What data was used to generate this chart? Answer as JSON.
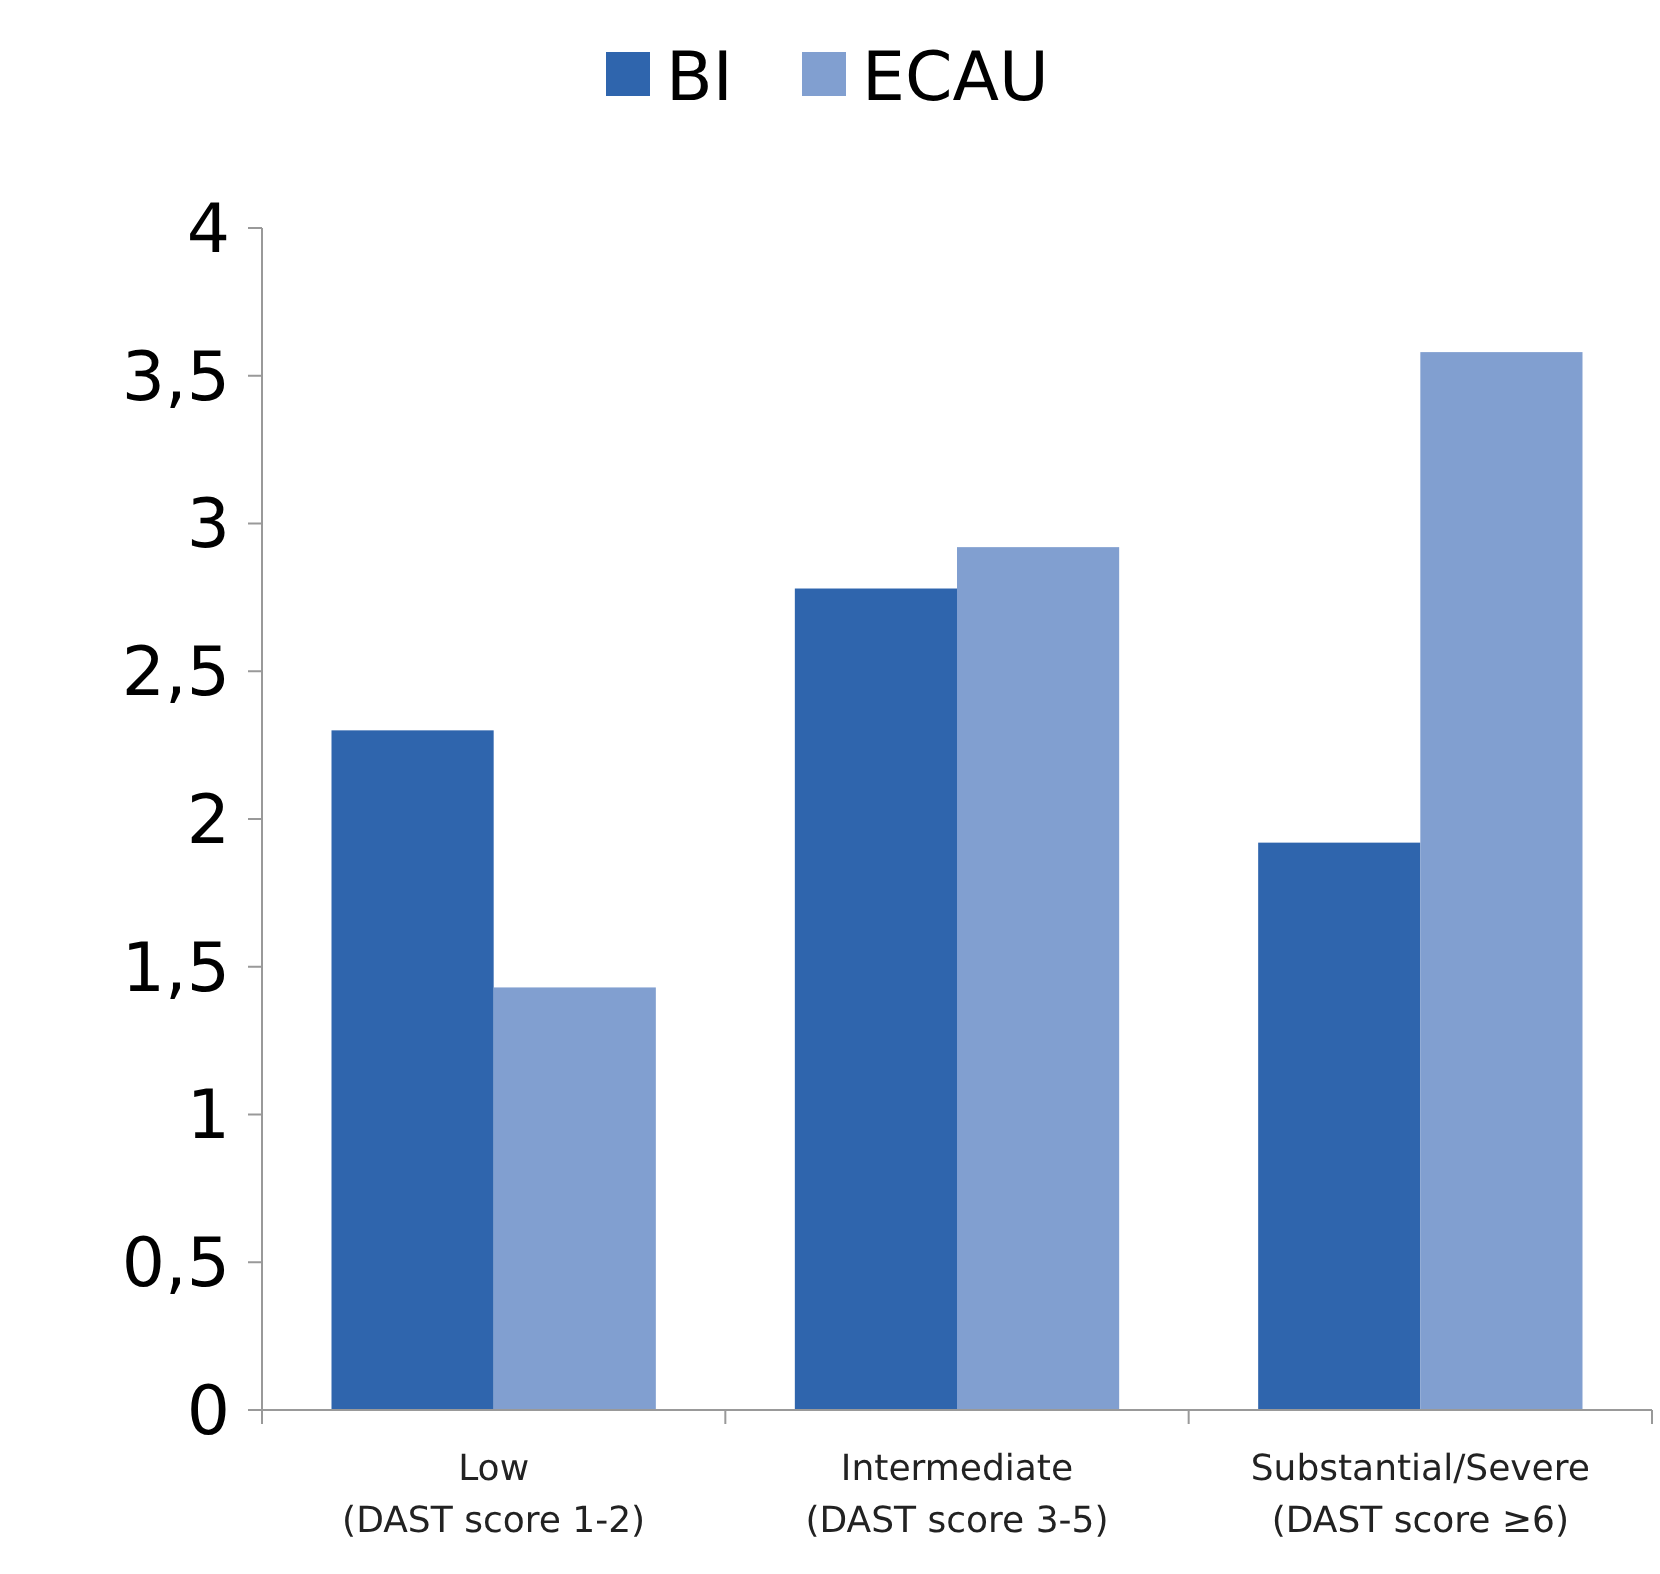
{
  "chart_data": {
    "type": "bar",
    "categories": [
      "Low\n(DAST score 1-2)",
      "Intermediate\n(DAST score 3-5)",
      "Substantial/Severe\n(DAST score ≥6)"
    ],
    "series": [
      {
        "name": "BI",
        "color": "#2f65ad",
        "values": [
          2.3,
          2.78,
          1.92
        ]
      },
      {
        "name": "ECAU",
        "color": "#819fd0",
        "values": [
          1.43,
          2.92,
          3.58
        ]
      }
    ],
    "ylim": [
      0,
      4
    ],
    "yticks": [
      0,
      {
        "value": 0.5,
        "label": "0,5"
      },
      1,
      {
        "value": 1.5,
        "label": "1,5"
      },
      2,
      {
        "value": 2.5,
        "label": "2,5"
      },
      3,
      {
        "value": 3.5,
        "label": "3,5"
      },
      4
    ],
    "grid": false,
    "legend": "top"
  }
}
